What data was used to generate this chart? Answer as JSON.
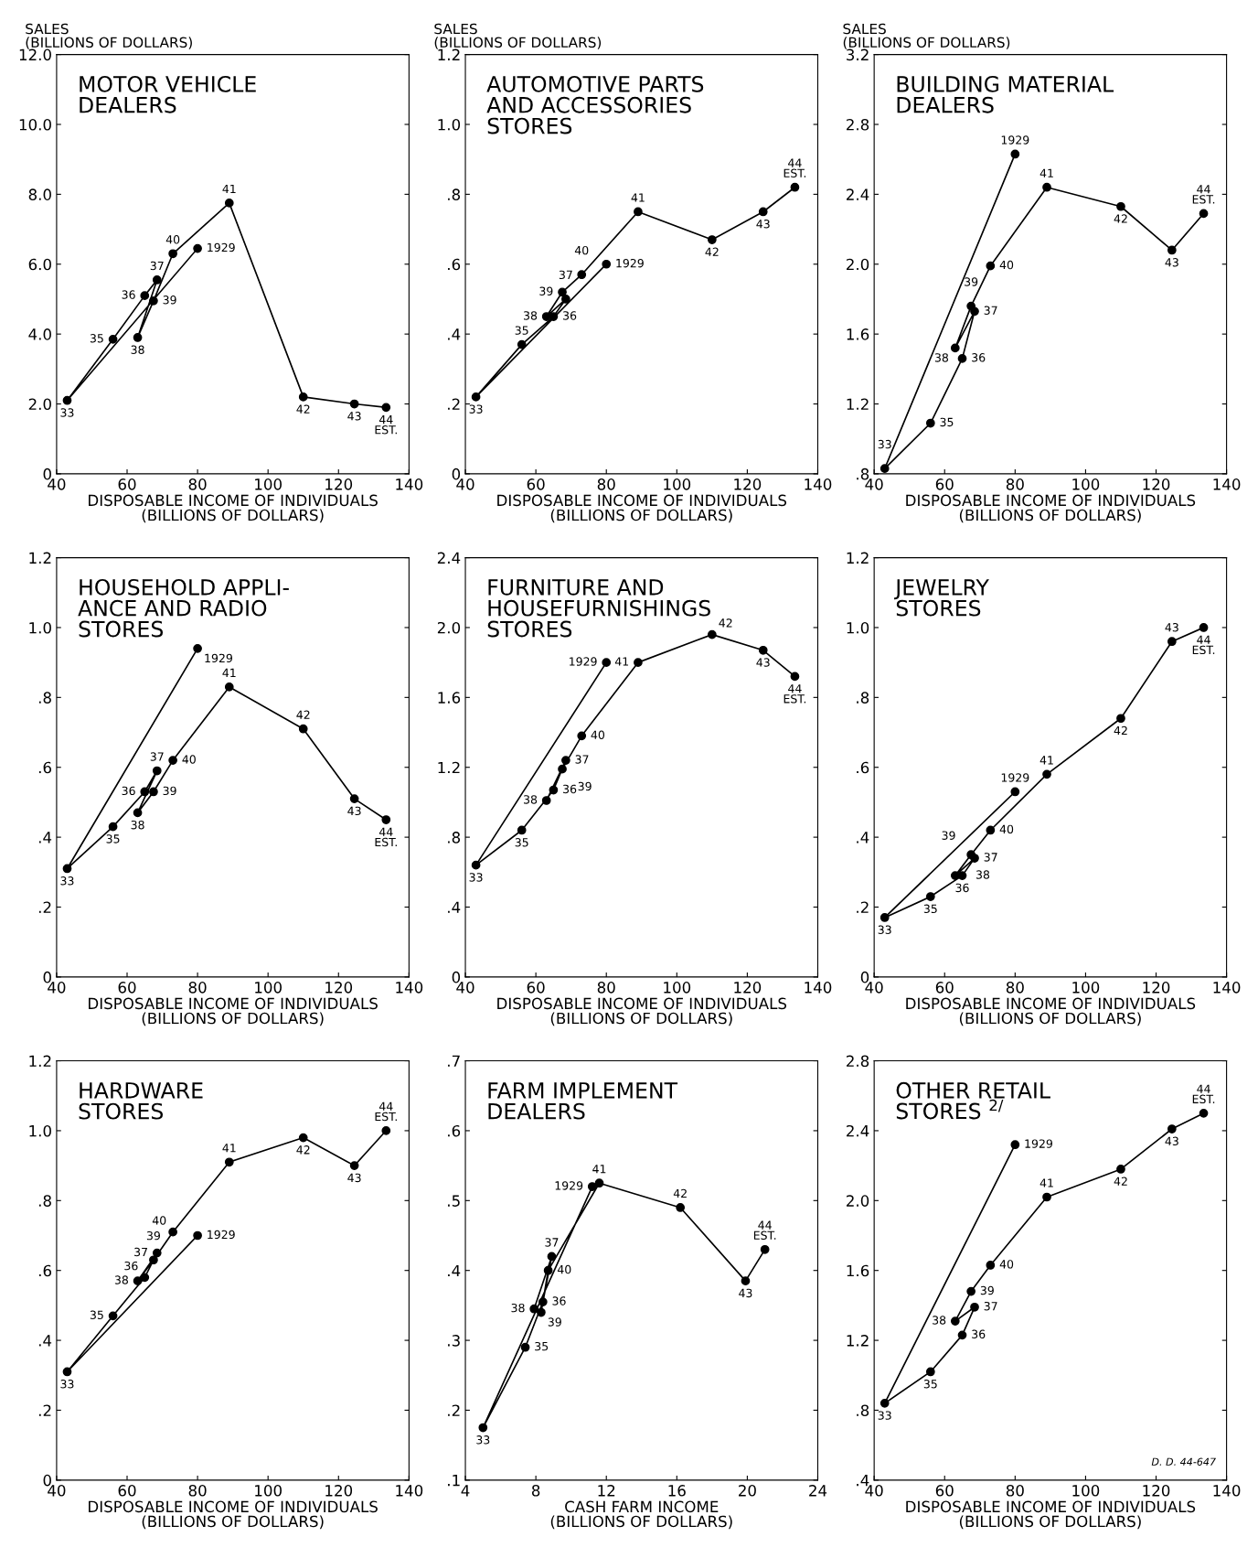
{
  "chart_data": [
    {
      "type": "line",
      "title": "MOTOR VEHICLE\nDEALERS",
      "ylabel": "SALES\n(BILLIONS OF DOLLARS)",
      "xlabel": "DISPOSABLE INCOME OF INDIVIDUALS\n(BILLIONS OF DOLLARS)",
      "marker": "circle",
      "xlim": [
        40,
        140
      ],
      "xticks": [
        40,
        60,
        80,
        100,
        120,
        140
      ],
      "ylim": [
        0,
        12
      ],
      "yticks": [
        0,
        {
          "value": 2,
          "label": "2.0"
        },
        {
          "value": 4,
          "label": "4.0"
        },
        {
          "value": 6,
          "label": "6.0"
        },
        {
          "value": 8,
          "label": "8.0"
        },
        {
          "value": 10,
          "label": "10.0"
        },
        {
          "value": 12,
          "label": "12.0"
        }
      ],
      "x": [
        80,
        43,
        56,
        65,
        68.5,
        63,
        67.5,
        73,
        89,
        110,
        124.5,
        133.5
      ],
      "series": [
        {
          "color": "#000000",
          "values": [
            6.45,
            2.1,
            3.85,
            5.1,
            5.55,
            3.9,
            4.95,
            6.3,
            7.75,
            2.2,
            2.0,
            1.9
          ]
        }
      ],
      "annotations": [
        {
          "text": "1929",
          "x": 80,
          "y": 6.45
        },
        {
          "text": "33",
          "x": 43,
          "y": 2.1
        },
        {
          "text": "35",
          "x": 56,
          "y": 3.85
        },
        {
          "text": "36",
          "x": 65,
          "y": 5.1
        },
        {
          "text": "37",
          "x": 68.5,
          "y": 5.55
        },
        {
          "text": "38",
          "x": 63,
          "y": 3.9
        },
        {
          "text": "39",
          "x": 67.5,
          "y": 4.95
        },
        {
          "text": "40",
          "x": 73,
          "y": 6.3
        },
        {
          "text": "41",
          "x": 89,
          "y": 7.75
        },
        {
          "text": "42",
          "x": 110,
          "y": 2.2
        },
        {
          "text": "43",
          "x": 124.5,
          "y": 2.0
        },
        {
          "text": "44\nEST.",
          "x": 133.5,
          "y": 1.9
        }
      ]
    },
    {
      "type": "line",
      "title": "AUTOMOTIVE PARTS\nAND ACCESSORIES\nSTORES",
      "ylabel": "SALES\n(BILLIONS OF DOLLARS)",
      "xlabel": "DISPOSABLE INCOME OF INDIVIDUALS\n(BILLIONS OF DOLLARS)",
      "marker": "circle",
      "xlim": [
        40,
        140
      ],
      "xticks": [
        40,
        60,
        80,
        100,
        120,
        140
      ],
      "ylim": [
        0,
        1.2
      ],
      "yticks": [
        0,
        {
          "value": 0.2,
          "label": ".2"
        },
        {
          "value": 0.4,
          "label": ".4"
        },
        {
          "value": 0.6,
          "label": ".6"
        },
        {
          "value": 0.8,
          "label": ".8"
        },
        {
          "value": 1.0,
          "label": "1.0"
        },
        {
          "value": 1.2,
          "label": "1.2"
        }
      ],
      "x": [
        80,
        43,
        56,
        65,
        68.5,
        63,
        67.5,
        73,
        89,
        110,
        124.5,
        133.5
      ],
      "series": [
        {
          "color": "#000000",
          "values": [
            0.6,
            0.22,
            0.37,
            0.45,
            0.5,
            0.45,
            0.52,
            0.57,
            0.75,
            0.67,
            0.75,
            0.82
          ]
        }
      ],
      "annotations": [
        {
          "text": "1929",
          "x": 80,
          "y": 0.6
        },
        {
          "text": "33",
          "x": 43,
          "y": 0.22
        },
        {
          "text": "35",
          "x": 56,
          "y": 0.37
        },
        {
          "text": "36",
          "x": 65,
          "y": 0.45
        },
        {
          "text": "37",
          "x": 68.5,
          "y": 0.5
        },
        {
          "text": "38",
          "x": 63,
          "y": 0.45
        },
        {
          "text": "39",
          "x": 67.5,
          "y": 0.52
        },
        {
          "text": "40",
          "x": 73,
          "y": 0.57
        },
        {
          "text": "41",
          "x": 89,
          "y": 0.75
        },
        {
          "text": "42",
          "x": 110,
          "y": 0.67
        },
        {
          "text": "43",
          "x": 124.5,
          "y": 0.75
        },
        {
          "text": "44\nEST.",
          "x": 133.5,
          "y": 0.82
        }
      ]
    },
    {
      "type": "line",
      "title": "BUILDING MATERIAL\nDEALERS",
      "ylabel": "SALES\n(BILLIONS OF DOLLARS)",
      "xlabel": "DISPOSABLE INCOME OF INDIVIDUALS\n(BILLIONS OF DOLLARS)",
      "marker": "circle",
      "xlim": [
        40,
        140
      ],
      "xticks": [
        40,
        60,
        80,
        100,
        120,
        140
      ],
      "ylim": [
        0.8,
        3.2
      ],
      "yticks": [
        {
          "value": 0.8,
          "label": ".8"
        },
        1.2,
        1.6,
        {
          "value": 2.0,
          "label": "2.0"
        },
        2.4,
        2.8,
        3.2
      ],
      "x": [
        80,
        43,
        56,
        65,
        68.5,
        63,
        67.5,
        73,
        89,
        110,
        124.5,
        133.5
      ],
      "series": [
        {
          "color": "#000000",
          "values": [
            2.63,
            0.83,
            1.09,
            1.46,
            1.73,
            1.52,
            1.76,
            1.99,
            2.44,
            2.33,
            2.08,
            2.29
          ]
        }
      ],
      "annotations": [
        {
          "text": "1929",
          "x": 80,
          "y": 2.63
        },
        {
          "text": "33",
          "x": 43,
          "y": 0.83
        },
        {
          "text": "35",
          "x": 56,
          "y": 1.09
        },
        {
          "text": "36",
          "x": 65,
          "y": 1.46
        },
        {
          "text": "37",
          "x": 68.5,
          "y": 1.73
        },
        {
          "text": "38",
          "x": 63,
          "y": 1.52
        },
        {
          "text": "39",
          "x": 67.5,
          "y": 1.76
        },
        {
          "text": "40",
          "x": 73,
          "y": 1.99
        },
        {
          "text": "41",
          "x": 89,
          "y": 2.44
        },
        {
          "text": "42",
          "x": 110,
          "y": 2.33
        },
        {
          "text": "43",
          "x": 124.5,
          "y": 2.08
        },
        {
          "text": "44\nEST.",
          "x": 133.5,
          "y": 2.29
        }
      ]
    },
    {
      "type": "line",
      "title": "HOUSEHOLD APPLI-\nANCE AND RADIO\nSTORES",
      "xlabel": "DISPOSABLE INCOME OF INDIVIDUALS\n(BILLIONS OF DOLLARS)",
      "marker": "circle",
      "xlim": [
        40,
        140
      ],
      "xticks": [
        40,
        60,
        80,
        100,
        120,
        140
      ],
      "ylim": [
        0,
        1.2
      ],
      "yticks": [
        0,
        {
          "value": 0.2,
          "label": ".2"
        },
        {
          "value": 0.4,
          "label": ".4"
        },
        {
          "value": 0.6,
          "label": ".6"
        },
        {
          "value": 0.8,
          "label": ".8"
        },
        {
          "value": 1.0,
          "label": "1.0"
        },
        {
          "value": 1.2,
          "label": "1.2"
        }
      ],
      "x": [
        80,
        43,
        56,
        65,
        68.5,
        63,
        67.5,
        73,
        89,
        110,
        124.5,
        133.5
      ],
      "series": [
        {
          "color": "#000000",
          "values": [
            0.94,
            0.31,
            0.43,
            0.53,
            0.59,
            0.47,
            0.53,
            0.62,
            0.83,
            0.71,
            0.51,
            0.45
          ]
        }
      ],
      "annotations": [
        {
          "text": "1929",
          "x": 80,
          "y": 0.94
        },
        {
          "text": "33",
          "x": 43,
          "y": 0.31
        },
        {
          "text": "35",
          "x": 56,
          "y": 0.43
        },
        {
          "text": "36",
          "x": 65,
          "y": 0.53
        },
        {
          "text": "37",
          "x": 68.5,
          "y": 0.59
        },
        {
          "text": "38",
          "x": 63,
          "y": 0.47
        },
        {
          "text": "39",
          "x": 67.5,
          "y": 0.53
        },
        {
          "text": "40",
          "x": 73,
          "y": 0.62
        },
        {
          "text": "41",
          "x": 89,
          "y": 0.83
        },
        {
          "text": "42",
          "x": 110,
          "y": 0.71
        },
        {
          "text": "43",
          "x": 124.5,
          "y": 0.51
        },
        {
          "text": "44\nEST.",
          "x": 133.5,
          "y": 0.45
        }
      ]
    },
    {
      "type": "line",
      "title": "FURNITURE AND\nHOUSEFURNISHINGS\nSTORES",
      "xlabel": "DISPOSABLE INCOME OF INDIVIDUALS\n(BILLIONS OF DOLLARS)",
      "marker": "circle",
      "xlim": [
        40,
        140
      ],
      "xticks": [
        40,
        60,
        80,
        100,
        120,
        140
      ],
      "ylim": [
        0,
        2.4
      ],
      "yticks": [
        0,
        {
          "value": 0.4,
          "label": ".4"
        },
        {
          "value": 0.8,
          "label": ".8"
        },
        1.2,
        1.6,
        {
          "value": 2.0,
          "label": "2.0"
        },
        2.4
      ],
      "x": [
        80,
        43,
        56,
        65,
        68.5,
        63,
        67.5,
        73,
        89,
        110,
        124.5,
        133.5
      ],
      "series": [
        {
          "color": "#000000",
          "values": [
            1.8,
            0.64,
            0.84,
            1.07,
            1.24,
            1.01,
            1.19,
            1.38,
            1.8,
            1.96,
            1.87,
            1.72
          ]
        }
      ],
      "annotations": [
        {
          "text": "1929",
          "x": 80,
          "y": 1.8
        },
        {
          "text": "33",
          "x": 43,
          "y": 0.64
        },
        {
          "text": "35",
          "x": 56,
          "y": 0.84
        },
        {
          "text": "36",
          "x": 65,
          "y": 1.07
        },
        {
          "text": "37",
          "x": 68.5,
          "y": 1.24
        },
        {
          "text": "38",
          "x": 63,
          "y": 1.01
        },
        {
          "text": "39",
          "x": 67.5,
          "y": 1.19
        },
        {
          "text": "40",
          "x": 73,
          "y": 1.38
        },
        {
          "text": "41",
          "x": 89,
          "y": 1.8
        },
        {
          "text": "42",
          "x": 110,
          "y": 1.96
        },
        {
          "text": "43",
          "x": 124.5,
          "y": 1.87
        },
        {
          "text": "44\nEST.",
          "x": 133.5,
          "y": 1.72
        }
      ]
    },
    {
      "type": "line",
      "title": "JEWELRY\nSTORES",
      "xlabel": "DISPOSABLE INCOME OF INDIVIDUALS\n(BILLIONS OF DOLLARS)",
      "marker": "circle",
      "xlim": [
        40,
        140
      ],
      "xticks": [
        40,
        60,
        80,
        100,
        120,
        140
      ],
      "ylim": [
        0,
        1.2
      ],
      "yticks": [
        0,
        {
          "value": 0.2,
          "label": ".2"
        },
        {
          "value": 0.4,
          "label": ".4"
        },
        {
          "value": 0.6,
          "label": ".6"
        },
        {
          "value": 0.8,
          "label": ".8"
        },
        {
          "value": 1.0,
          "label": "1.0"
        },
        {
          "value": 1.2,
          "label": "1.2"
        }
      ],
      "x": [
        80,
        43,
        56,
        65,
        68.5,
        63,
        67.5,
        73,
        89,
        110,
        124.5,
        133.5
      ],
      "series": [
        {
          "color": "#000000",
          "values": [
            0.53,
            0.17,
            0.23,
            0.29,
            0.34,
            0.29,
            0.35,
            0.42,
            0.58,
            0.74,
            0.96,
            1.0
          ]
        }
      ],
      "annotations": [
        {
          "text": "1929",
          "x": 80,
          "y": 0.53
        },
        {
          "text": "33",
          "x": 43,
          "y": 0.17
        },
        {
          "text": "35",
          "x": 56,
          "y": 0.23
        },
        {
          "text": "36",
          "x": 65,
          "y": 0.29
        },
        {
          "text": "37",
          "x": 68.5,
          "y": 0.34
        },
        {
          "text": "38",
          "x": 63,
          "y": 0.29
        },
        {
          "text": "39",
          "x": 67.5,
          "y": 0.35
        },
        {
          "text": "40",
          "x": 73,
          "y": 0.42
        },
        {
          "text": "41",
          "x": 89,
          "y": 0.58
        },
        {
          "text": "42",
          "x": 110,
          "y": 0.74
        },
        {
          "text": "43",
          "x": 124.5,
          "y": 0.96
        },
        {
          "text": "44\nEST.",
          "x": 133.5,
          "y": 1.0
        }
      ]
    },
    {
      "type": "line",
      "title": "HARDWARE\nSTORES",
      "xlabel": "DISPOSABLE INCOME OF INDIVIDUALS\n(BILLIONS OF DOLLARS)",
      "marker": "circle",
      "xlim": [
        40,
        140
      ],
      "xticks": [
        40,
        60,
        80,
        100,
        120,
        140
      ],
      "ylim": [
        0,
        1.2
      ],
      "yticks": [
        0,
        {
          "value": 0.2,
          "label": ".2"
        },
        {
          "value": 0.4,
          "label": ".4"
        },
        {
          "value": 0.6,
          "label": ".6"
        },
        {
          "value": 0.8,
          "label": ".8"
        },
        {
          "value": 1.0,
          "label": "1.0"
        },
        {
          "value": 1.2,
          "label": "1.2"
        }
      ],
      "x": [
        80,
        43,
        56,
        65,
        68.5,
        63,
        67.5,
        73,
        89,
        110,
        124.5,
        133.5
      ],
      "series": [
        {
          "color": "#000000",
          "values": [
            0.7,
            0.31,
            0.47,
            0.58,
            0.65,
            0.57,
            0.63,
            0.71,
            0.91,
            0.98,
            0.9,
            1.0
          ]
        }
      ],
      "annotations": [
        {
          "text": "1929",
          "x": 80,
          "y": 0.7
        },
        {
          "text": "33",
          "x": 43,
          "y": 0.31
        },
        {
          "text": "35",
          "x": 56,
          "y": 0.47
        },
        {
          "text": "36",
          "x": 65,
          "y": 0.58
        },
        {
          "text": "37",
          "x": 68.5,
          "y": 0.65
        },
        {
          "text": "38",
          "x": 63,
          "y": 0.57
        },
        {
          "text": "39",
          "x": 67.5,
          "y": 0.63
        },
        {
          "text": "40",
          "x": 73,
          "y": 0.71
        },
        {
          "text": "41",
          "x": 89,
          "y": 0.91
        },
        {
          "text": "42",
          "x": 110,
          "y": 0.98
        },
        {
          "text": "43",
          "x": 124.5,
          "y": 0.9
        },
        {
          "text": "44\nEST.",
          "x": 133.5,
          "y": 1.0
        }
      ]
    },
    {
      "type": "line",
      "title": "FARM IMPLEMENT\nDEALERS",
      "xlabel": "CASH FARM INCOME\n(BILLIONS OF DOLLARS)",
      "marker": "circle",
      "xlim": [
        4,
        24
      ],
      "xticks": [
        4,
        8,
        12,
        16,
        20,
        24
      ],
      "ylim": [
        0.1,
        0.7
      ],
      "yticks": [
        {
          "value": 0.1,
          "label": ".1"
        },
        {
          "value": 0.2,
          "label": ".2"
        },
        {
          "value": 0.3,
          "label": ".3"
        },
        {
          "value": 0.4,
          "label": ".4"
        },
        {
          "value": 0.5,
          "label": ".5"
        },
        {
          "value": 0.6,
          "label": ".6"
        },
        {
          "value": 0.7,
          "label": ".7"
        }
      ],
      "x": [
        11.2,
        5.0,
        7.4,
        8.4,
        8.9,
        7.9,
        8.3,
        8.7,
        11.6,
        16.2,
        19.9,
        21.0
      ],
      "series": [
        {
          "color": "#000000",
          "values": [
            0.52,
            0.175,
            0.29,
            0.355,
            0.42,
            0.345,
            0.34,
            0.4,
            0.525,
            0.49,
            0.385,
            0.43
          ]
        }
      ],
      "annotations": [
        {
          "text": "1929",
          "x": 11.2,
          "y": 0.52
        },
        {
          "text": "33",
          "x": 5.0,
          "y": 0.175
        },
        {
          "text": "35",
          "x": 7.4,
          "y": 0.29
        },
        {
          "text": "36",
          "x": 8.4,
          "y": 0.355
        },
        {
          "text": "37",
          "x": 8.9,
          "y": 0.42
        },
        {
          "text": "38",
          "x": 7.9,
          "y": 0.345
        },
        {
          "text": "39",
          "x": 8.3,
          "y": 0.34
        },
        {
          "text": "40",
          "x": 8.7,
          "y": 0.4
        },
        {
          "text": "41",
          "x": 11.6,
          "y": 0.525
        },
        {
          "text": "42",
          "x": 16.2,
          "y": 0.49
        },
        {
          "text": "43",
          "x": 19.9,
          "y": 0.385
        },
        {
          "text": "44\nEST.",
          "x": 21.0,
          "y": 0.43
        }
      ]
    },
    {
      "type": "line",
      "title": "OTHER RETAIL\nSTORES $^{2/}$",
      "xlabel": "DISPOSABLE INCOME OF INDIVIDUALS\n(BILLIONS OF DOLLARS)",
      "marker": "circle",
      "xlim": [
        40,
        140
      ],
      "xticks": [
        40,
        60,
        80,
        100,
        120,
        140
      ],
      "ylim": [
        0.4,
        2.8
      ],
      "yticks": [
        {
          "value": 0.4,
          "label": ".4"
        },
        {
          "value": 0.8,
          "label": ".8"
        },
        1.2,
        1.6,
        {
          "value": 2.0,
          "label": "2.0"
        },
        2.4,
        2.8
      ],
      "x": [
        80,
        43,
        56,
        65,
        68.5,
        63,
        67.5,
        73,
        89,
        110,
        124.5,
        133.5
      ],
      "series": [
        {
          "color": "#000000",
          "values": [
            2.32,
            0.84,
            1.02,
            1.23,
            1.39,
            1.31,
            1.48,
            1.63,
            2.02,
            2.18,
            2.41,
            2.5
          ]
        }
      ],
      "annotations": [
        {
          "text": "1929",
          "x": 80,
          "y": 2.32
        },
        {
          "text": "33",
          "x": 43,
          "y": 0.84
        },
        {
          "text": "35",
          "x": 56,
          "y": 1.02
        },
        {
          "text": "36",
          "x": 65,
          "y": 1.23
        },
        {
          "text": "37",
          "x": 68.5,
          "y": 1.39
        },
        {
          "text": "38",
          "x": 63,
          "y": 1.31
        },
        {
          "text": "39",
          "x": 67.5,
          "y": 1.48
        },
        {
          "text": "40",
          "x": 73,
          "y": 1.63
        },
        {
          "text": "41",
          "x": 89,
          "y": 2.02
        },
        {
          "text": "42",
          "x": 110,
          "y": 2.18
        },
        {
          "text": "43",
          "x": 124.5,
          "y": 2.41
        },
        {
          "text": "44\nEST.",
          "x": 133.5,
          "y": 2.5
        },
        "D. D. 44-647"
      ]
    }
  ]
}
